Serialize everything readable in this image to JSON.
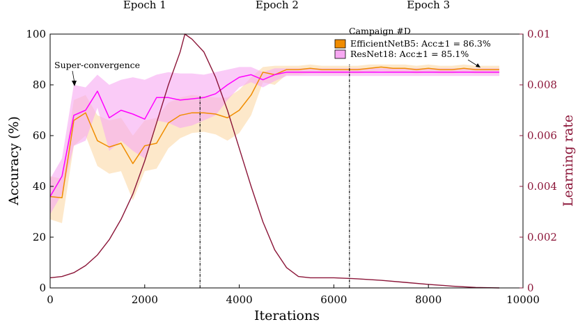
{
  "chart_data": {
    "type": "line",
    "xlabel": "Iterations",
    "ylabel_left": "Accuracy (%)",
    "ylabel_right": "Learning rate",
    "xlim": [
      0,
      10000
    ],
    "ylim_left": [
      0,
      100
    ],
    "ylim_right": [
      0,
      0.01
    ],
    "x_ticks": [
      0,
      2000,
      4000,
      6000,
      8000,
      10000
    ],
    "x_tick_labels": [
      "0",
      "2000",
      "4000",
      "6000",
      "8000",
      "10000"
    ],
    "y_ticks_left": [
      0,
      20,
      40,
      60,
      80,
      100
    ],
    "y_tick_labels_left": [
      "0",
      "20",
      "40",
      "60",
      "80",
      "100"
    ],
    "y_ticks_right": [
      0,
      0.002,
      0.004,
      0.006,
      0.008,
      0.01
    ],
    "y_tick_labels_right": [
      "0",
      "0.002",
      "0.004",
      "0.006",
      "0.008",
      "0.01"
    ],
    "epochs": [
      {
        "label": "Epoch 1",
        "center_x": 2000
      },
      {
        "label": "Epoch 2",
        "center_x": 4800
      },
      {
        "label": "Epoch 3",
        "center_x": 8000
      }
    ],
    "epoch_boundaries": [
      {
        "x": 3170,
        "y_top": 75.5
      },
      {
        "x": 6330,
        "y_top": 88
      }
    ],
    "legend": {
      "title": "Campaign #D",
      "placement": "top-right",
      "entries": [
        "EfficientNetB5: Acc±1 = 86.3%",
        "ResNet18: Acc±1 = 85.1%"
      ]
    },
    "annotations": [
      {
        "text": "Super-convergence",
        "x": 0,
        "y": 88,
        "arrow_to": [
          500,
          79
        ]
      }
    ],
    "series": [
      {
        "name": "EfficientNetB5",
        "axis": "left",
        "color": "#f08c00",
        "band_color": "#fbd9a6",
        "x": [
          0,
          250,
          500,
          750,
          1000,
          1250,
          1500,
          1750,
          2000,
          2250,
          2500,
          2750,
          3000,
          3250,
          3500,
          3750,
          4000,
          4250,
          4500,
          4750,
          5000,
          5250,
          5500,
          5750,
          6000,
          6250,
          6500,
          6750,
          7000,
          7250,
          7500,
          7750,
          8000,
          8250,
          8500,
          8750,
          9000,
          9250,
          9500
        ],
        "values": [
          36,
          35.5,
          66,
          69,
          58,
          55.5,
          57,
          49,
          56,
          57,
          65,
          68,
          69,
          69,
          68.5,
          67,
          70,
          76,
          85,
          84,
          86,
          86,
          86.5,
          86,
          86,
          86,
          86,
          86.5,
          87,
          86.5,
          86.5,
          86,
          86.5,
          86,
          86,
          86.5,
          86,
          86,
          86
        ],
        "upper": [
          44,
          43,
          74,
          76,
          68,
          66,
          67,
          60,
          66,
          67,
          73,
          75,
          76,
          75.5,
          75,
          75,
          78,
          83,
          87,
          87.5,
          87.5,
          87.5,
          88,
          87.5,
          87.5,
          87.5,
          87.5,
          88,
          88,
          88,
          88,
          87.5,
          88,
          87.5,
          87.5,
          88,
          87.5,
          87.5,
          87.5
        ],
        "lower": [
          27,
          25.5,
          56,
          60,
          48,
          45,
          46,
          34.5,
          46,
          47,
          55,
          59,
          61,
          61.5,
          60.5,
          58,
          61,
          68,
          81,
          80,
          84,
          84,
          84.5,
          84.5,
          84.5,
          84.5,
          84.5,
          85,
          85.5,
          85,
          85,
          84.5,
          85,
          84.5,
          84.5,
          85,
          84.5,
          84.5,
          84.5
        ]
      },
      {
        "name": "ResNet18",
        "axis": "left",
        "color": "#ff00ff",
        "band_color": "#f7a8f2",
        "x": [
          0,
          250,
          500,
          750,
          1000,
          1250,
          1500,
          1750,
          2000,
          2250,
          2500,
          2750,
          3000,
          3250,
          3500,
          3750,
          4000,
          4250,
          4500,
          4750,
          5000,
          5250,
          5500,
          5750,
          6000,
          6250,
          6500,
          6750,
          7000,
          7250,
          7500,
          7750,
          8000,
          8250,
          8500,
          8750,
          9000,
          9250,
          9500
        ],
        "values": [
          36,
          44,
          68,
          70,
          77.5,
          67,
          70,
          68.5,
          66.5,
          75,
          75,
          74,
          74.5,
          75,
          76.5,
          80,
          83,
          84,
          82,
          84,
          85,
          85,
          85,
          85,
          85,
          85,
          85,
          85,
          85,
          85,
          85,
          85,
          85,
          85,
          85,
          85,
          85,
          85,
          85
        ],
        "upper": [
          43,
          51,
          80,
          79,
          84,
          80,
          82,
          83,
          82,
          84,
          85,
          84.5,
          84.5,
          84,
          85,
          86,
          87,
          87,
          85,
          86.5,
          86.5,
          86.5,
          86.5,
          86.5,
          86.5,
          86.5,
          86.5,
          86.5,
          86.5,
          86.5,
          86.5,
          86.5,
          86.5,
          86.5,
          86.5,
          86.5,
          86.5,
          86.5,
          86.5
        ],
        "lower": [
          29,
          37,
          56,
          58,
          71,
          54,
          58,
          54,
          51,
          66,
          65,
          63,
          64,
          66,
          68,
          74,
          79,
          81,
          79,
          81.5,
          83.5,
          83.5,
          83.5,
          83.5,
          83.5,
          83.5,
          83.5,
          83.5,
          83.5,
          83.5,
          83.5,
          83.5,
          83.5,
          83.5,
          83.5,
          83.5,
          83.5,
          83.5,
          83.5
        ]
      },
      {
        "name": "Learning rate",
        "axis": "right",
        "color": "#8b1538",
        "x": [
          0,
          250,
          500,
          750,
          1000,
          1250,
          1500,
          1750,
          2000,
          2250,
          2500,
          2750,
          2850,
          3000,
          3250,
          3500,
          3750,
          4000,
          4250,
          4500,
          4750,
          5000,
          5250,
          5500,
          5750,
          6000,
          6500,
          7000,
          7500,
          8000,
          8500,
          9000,
          9500
        ],
        "values": [
          0.0004,
          0.00045,
          0.0006,
          0.00088,
          0.0013,
          0.0019,
          0.0027,
          0.0037,
          0.005,
          0.0065,
          0.008,
          0.0093,
          0.01,
          0.0098,
          0.0093,
          0.0083,
          0.007,
          0.0055,
          0.004,
          0.0026,
          0.0015,
          0.0008,
          0.00045,
          0.0004,
          0.0004,
          0.0004,
          0.00036,
          0.0003,
          0.00022,
          0.00014,
          7e-05,
          2e-05,
          0.0
        ]
      }
    ]
  }
}
